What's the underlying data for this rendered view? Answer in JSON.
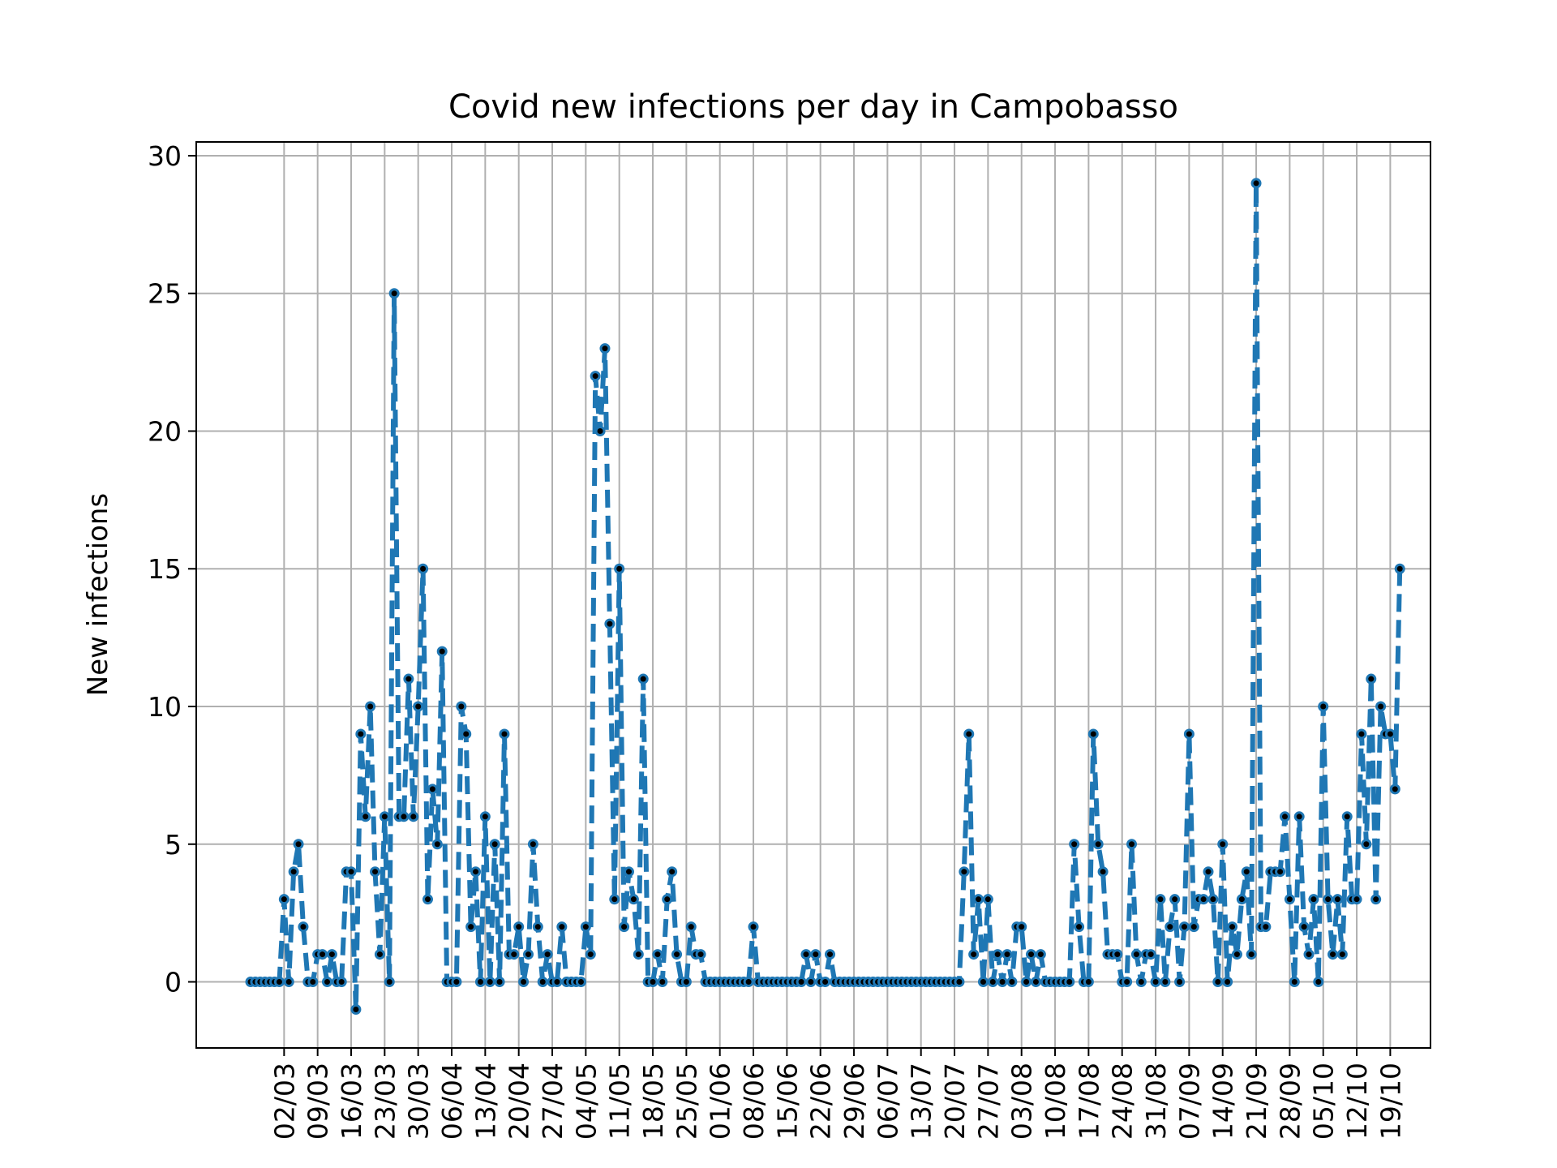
{
  "chart_data": {
    "type": "line",
    "title": "Covid new infections per day in Campobasso",
    "xlabel": "",
    "ylabel": "New infections",
    "grid": true,
    "legend": "none",
    "ylim": [
      -2.4,
      30.5
    ],
    "yticks": [
      0,
      5,
      10,
      15,
      20,
      25,
      30
    ],
    "xticks": [
      "02/03",
      "09/03",
      "16/03",
      "23/03",
      "30/03",
      "06/04",
      "13/04",
      "20/04",
      "27/04",
      "04/05",
      "11/05",
      "18/05",
      "25/05",
      "01/06",
      "08/06",
      "15/06",
      "22/06",
      "29/06",
      "06/07",
      "13/07",
      "20/07",
      "27/07",
      "03/08",
      "10/08",
      "17/08",
      "24/08",
      "31/08",
      "07/09",
      "14/09",
      "21/09",
      "28/09",
      "05/10",
      "12/10",
      "19/10"
    ],
    "x_start_date": "2020-02-24",
    "line_color": "#1f77b4",
    "marker_color": "#000000",
    "series": [
      {
        "values": [
          0,
          0,
          0,
          0,
          0,
          0,
          0,
          3,
          0,
          4,
          5,
          2,
          0,
          0,
          1,
          1,
          0,
          1,
          0,
          0,
          4,
          4,
          -1,
          9,
          6,
          10,
          4,
          1,
          6,
          0,
          25,
          6,
          6,
          11,
          6,
          10,
          15,
          3,
          7,
          5,
          12,
          0,
          0,
          0,
          10,
          9,
          2,
          4,
          0,
          6,
          0,
          5,
          0,
          9,
          1,
          1,
          2,
          0,
          1,
          5,
          2,
          0,
          1,
          0,
          0,
          2,
          0,
          0,
          0,
          0,
          2,
          1,
          22,
          20,
          23,
          13,
          3,
          15,
          2,
          4,
          3,
          1,
          11,
          0,
          0,
          1,
          0,
          3,
          4,
          1,
          0,
          0,
          2,
          1,
          1,
          0,
          0,
          0,
          0,
          0,
          0,
          0,
          0,
          0,
          0,
          2,
          0,
          0,
          0,
          0,
          0,
          0,
          0,
          0,
          0,
          0,
          1,
          0,
          1,
          0,
          0,
          1,
          0,
          0,
          0,
          0,
          0,
          0,
          0,
          0,
          0,
          0,
          0,
          0,
          0,
          0,
          0,
          0,
          0,
          0,
          0,
          0,
          0,
          0,
          0,
          0,
          0,
          0,
          0,
          4,
          9,
          1,
          3,
          0,
          3,
          0,
          1,
          0,
          1,
          0,
          2,
          2,
          0,
          1,
          0,
          1,
          0,
          0,
          0,
          0,
          0,
          0,
          5,
          2,
          0,
          0,
          9,
          5,
          4,
          1,
          1,
          1,
          0,
          0,
          5,
          1,
          0,
          1,
          1,
          0,
          3,
          0,
          2,
          3,
          0,
          2,
          9,
          2,
          3,
          3,
          4,
          3,
          0,
          5,
          0,
          2,
          1,
          3,
          4,
          1,
          29,
          2,
          2,
          4,
          4,
          4,
          6,
          3,
          0,
          6,
          2,
          1,
          3,
          0,
          10,
          3,
          1,
          3,
          1,
          6,
          3,
          3,
          9,
          5,
          11,
          3,
          10,
          9,
          9,
          7,
          15
        ]
      }
    ]
  }
}
